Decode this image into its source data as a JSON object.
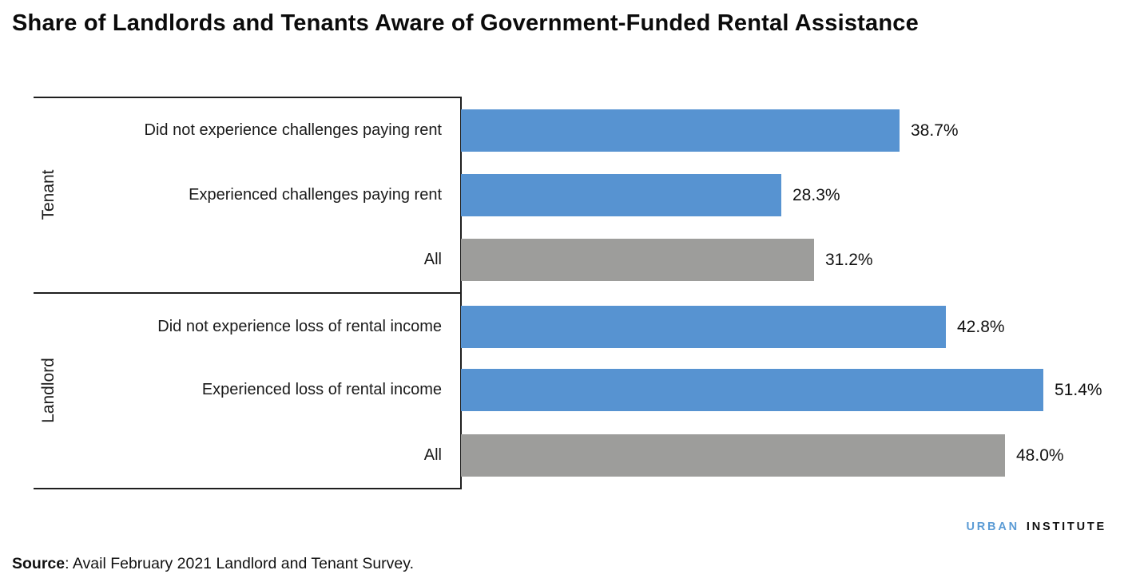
{
  "title": "Share of Landlords and Tenants Aware of Government-Funded Rental Assistance",
  "chart_data": {
    "type": "bar",
    "orientation": "horizontal",
    "unit": "percent",
    "xlim": [
      0,
      56
    ],
    "grid": false,
    "legend": false,
    "value_labels": "outside-end",
    "colors": {
      "subgroup": "#5793D1",
      "all": "#9D9D9B"
    },
    "groups": [
      {
        "name": "Tenant",
        "rows": [
          {
            "category": "Did not experience challenges paying rent",
            "value": 38.7,
            "label": "38.7%",
            "series": "subgroup"
          },
          {
            "category": "Experienced challenges paying rent",
            "value": 28.3,
            "label": "28.3%",
            "series": "subgroup"
          },
          {
            "category": "All",
            "value": 31.2,
            "label": "31.2%",
            "series": "all"
          }
        ]
      },
      {
        "name": "Landlord",
        "rows": [
          {
            "category": "Did not experience loss of rental income",
            "value": 42.8,
            "label": "42.8%",
            "series": "subgroup"
          },
          {
            "category": "Experienced loss of rental income",
            "value": 51.4,
            "label": "51.4%",
            "series": "subgroup"
          },
          {
            "category": "All",
            "value": 48.0,
            "label": "48.0%",
            "series": "all"
          }
        ]
      }
    ]
  },
  "logo": {
    "part1": "URBAN",
    "part2": "INSTITUTE",
    "part1_color": "#5B9BD5",
    "part2_color": "#101010"
  },
  "source": {
    "label": "Source",
    "text": ": Avail February 2021 Landlord and Tenant Survey."
  }
}
